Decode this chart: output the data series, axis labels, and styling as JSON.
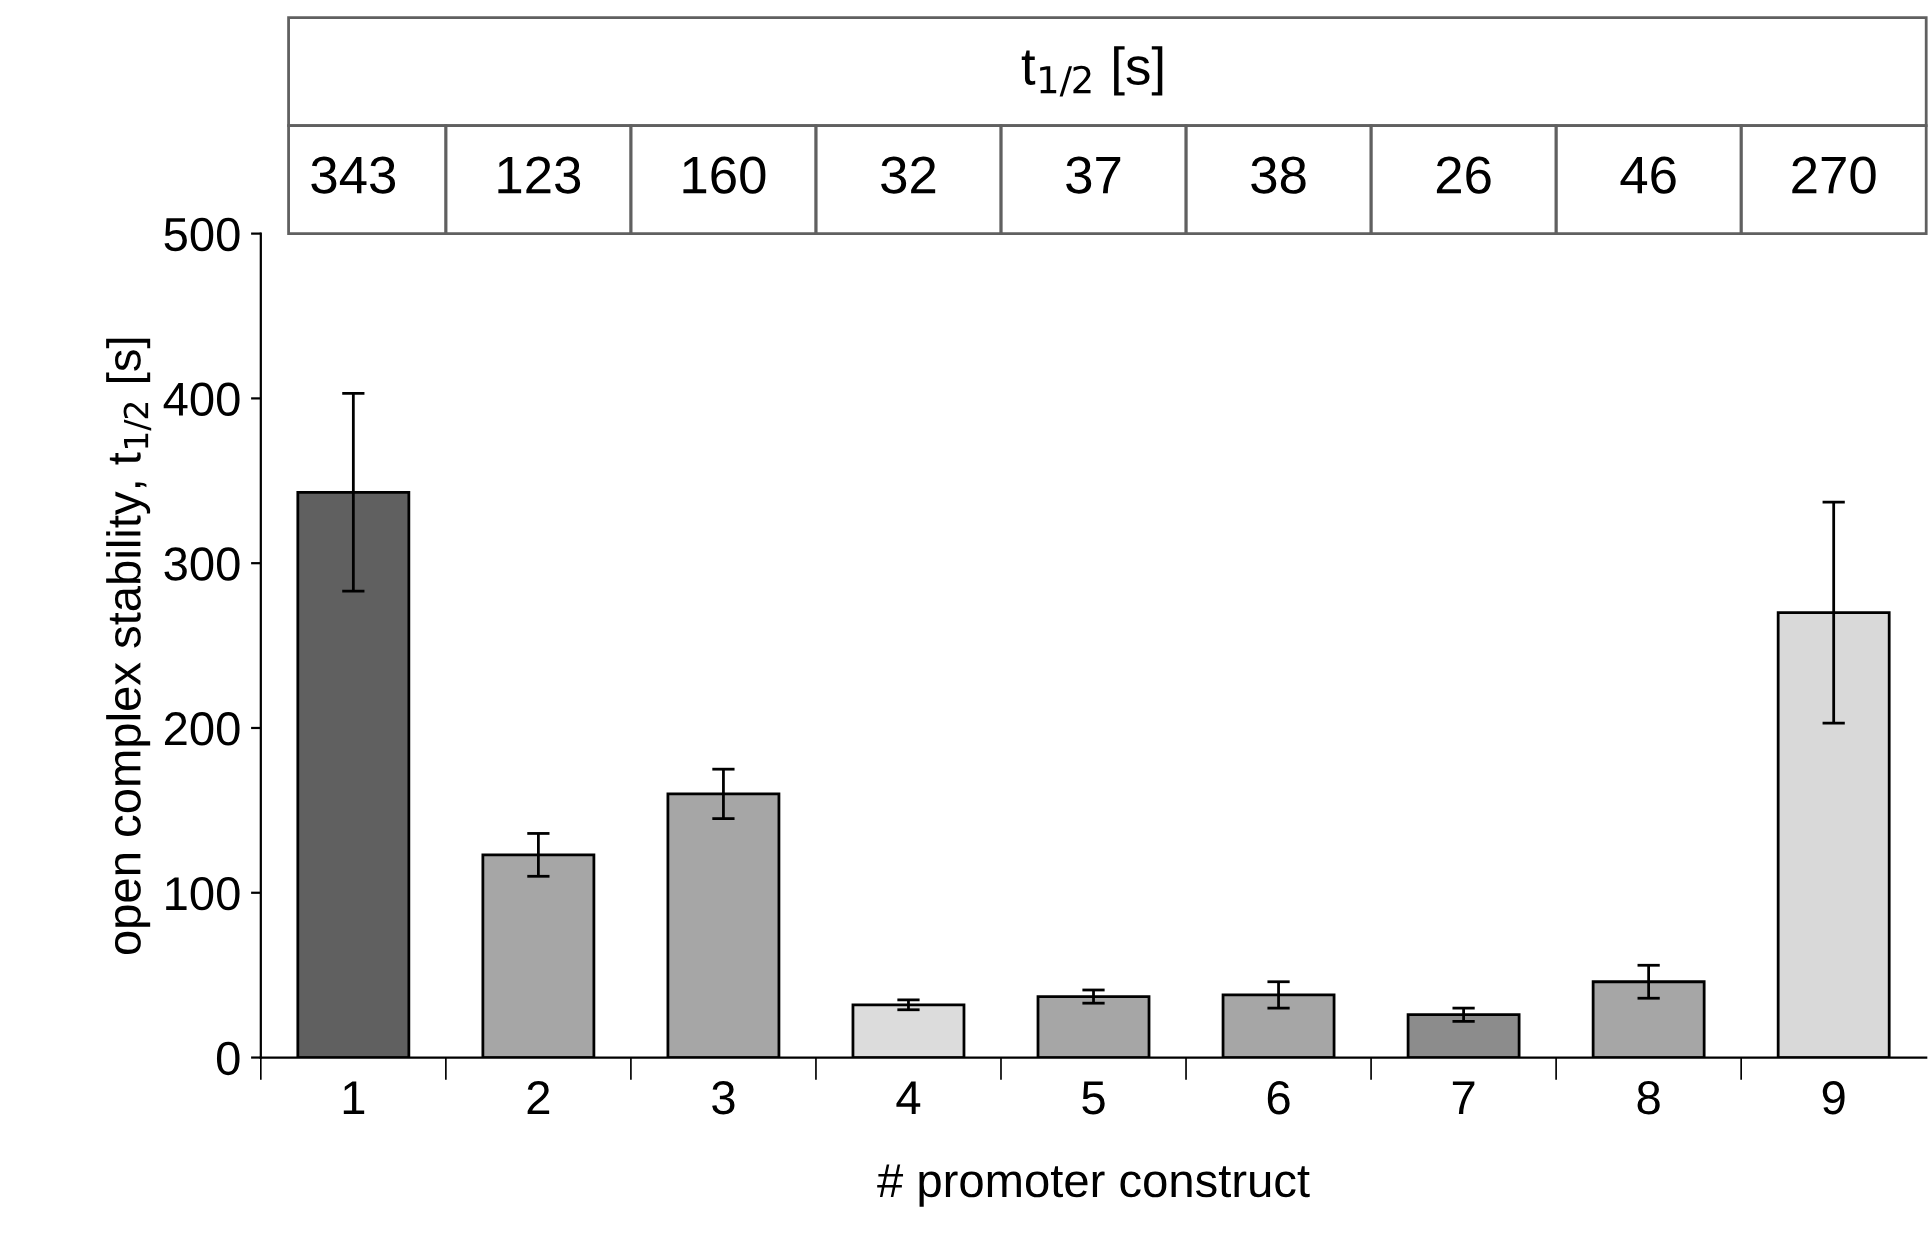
{
  "chart_data": {
    "type": "bar",
    "title": "t$_{1/2}$ [s]",
    "xlabel": "# promoter construct",
    "ylabel": "open complex stability, t$_{1/2}$ [s]",
    "categories": [
      "1",
      "2",
      "3",
      "4",
      "5",
      "6",
      "7",
      "8",
      "9"
    ],
    "values": [
      343,
      123,
      160,
      32,
      37,
      38,
      26,
      46,
      270
    ],
    "errors": [
      60,
      13,
      15,
      3,
      4,
      8,
      4,
      10,
      67
    ],
    "colors": [
      "#606060",
      "#a6a6a6",
      "#a6a6a6",
      "#dcdcdc",
      "#a6a6a6",
      "#a6a6a6",
      "#8c8c8c",
      "#a6a6a6",
      "#d9d9d9"
    ],
    "ylim": [
      0,
      500
    ],
    "yticks": [
      0,
      100,
      200,
      300,
      400,
      500
    ],
    "annotations": [
      "343",
      "123",
      "160",
      "32",
      "37",
      "38",
      "26",
      "46",
      "270"
    ],
    "grid": false,
    "legend": false
  }
}
